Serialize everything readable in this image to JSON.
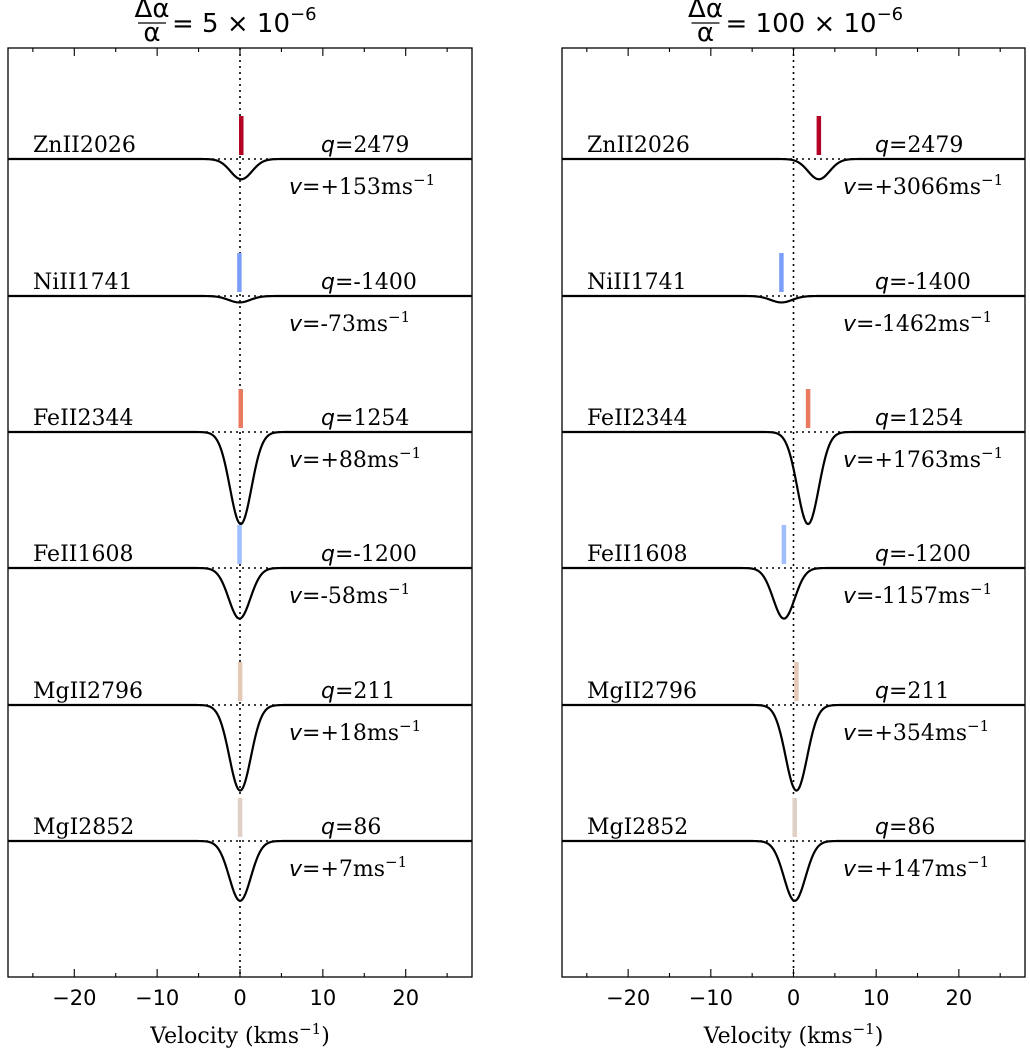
{
  "chart_data": {
    "type": "line",
    "x_range": [
      -28,
      28
    ],
    "x_ticks": [
      -20,
      -10,
      0,
      10,
      20
    ],
    "x_tick_labels": [
      "−20",
      "−10",
      "0",
      "10",
      "20"
    ],
    "xlabel_text": "Velocity (kms",
    "xlabel_sup": "−1",
    "xlabel_close": ")",
    "panels": [
      {
        "title_frac_num": "Δα",
        "title_frac_den": "α",
        "title_rest": "= 5 × 10",
        "title_exp": "−6",
        "transitions": [
          {
            "ion": "ZnII2026",
            "q": "2479",
            "v": "+153",
            "shift_kms": 0.153,
            "depth": 0.22,
            "color": "#b40426"
          },
          {
            "ion": "NiII1741",
            "q": "-1400",
            "v": "-73",
            "shift_kms": -0.073,
            "depth": 0.07,
            "color": "#7b9ff9"
          },
          {
            "ion": "FeII2344",
            "q": "1254",
            "v": "+88",
            "shift_kms": 0.088,
            "depth": 1.0,
            "color": "#e97a5f"
          },
          {
            "ion": "FeII1608",
            "q": "-1200",
            "v": "-58",
            "shift_kms": -0.058,
            "depth": 0.55,
            "color": "#9ebeff"
          },
          {
            "ion": "MgII2796",
            "q": "211",
            "v": "+18",
            "shift_kms": 0.018,
            "depth": 0.93,
            "color": "#e5c9b7"
          },
          {
            "ion": "MgI2852",
            "q": "86",
            "v": "+7",
            "shift_kms": 0.007,
            "depth": 0.65,
            "color": "#dfcfc4"
          }
        ]
      },
      {
        "title_frac_num": "Δα",
        "title_frac_den": "α",
        "title_rest": "= 100 × 10",
        "title_exp": "−6",
        "transitions": [
          {
            "ion": "ZnII2026",
            "q": "2479",
            "v": "+3066",
            "shift_kms": 3.066,
            "depth": 0.22,
            "color": "#b40426"
          },
          {
            "ion": "NiII1741",
            "q": "-1400",
            "v": "-1462",
            "shift_kms": -1.462,
            "depth": 0.07,
            "color": "#7b9ff9"
          },
          {
            "ion": "FeII2344",
            "q": "1254",
            "v": "+1763",
            "shift_kms": 1.763,
            "depth": 1.0,
            "color": "#e97a5f"
          },
          {
            "ion": "FeII1608",
            "q": "-1200",
            "v": "-1157",
            "shift_kms": -1.157,
            "depth": 0.55,
            "color": "#9ebeff"
          },
          {
            "ion": "MgII2796",
            "q": "211",
            "v": "+354",
            "shift_kms": 0.354,
            "depth": 0.93,
            "color": "#e5c9b7"
          },
          {
            "ion": "MgI2852",
            "q": "86",
            "v": "+147",
            "shift_kms": 0.147,
            "depth": 0.65,
            "color": "#dfcfc4"
          }
        ]
      }
    ]
  }
}
